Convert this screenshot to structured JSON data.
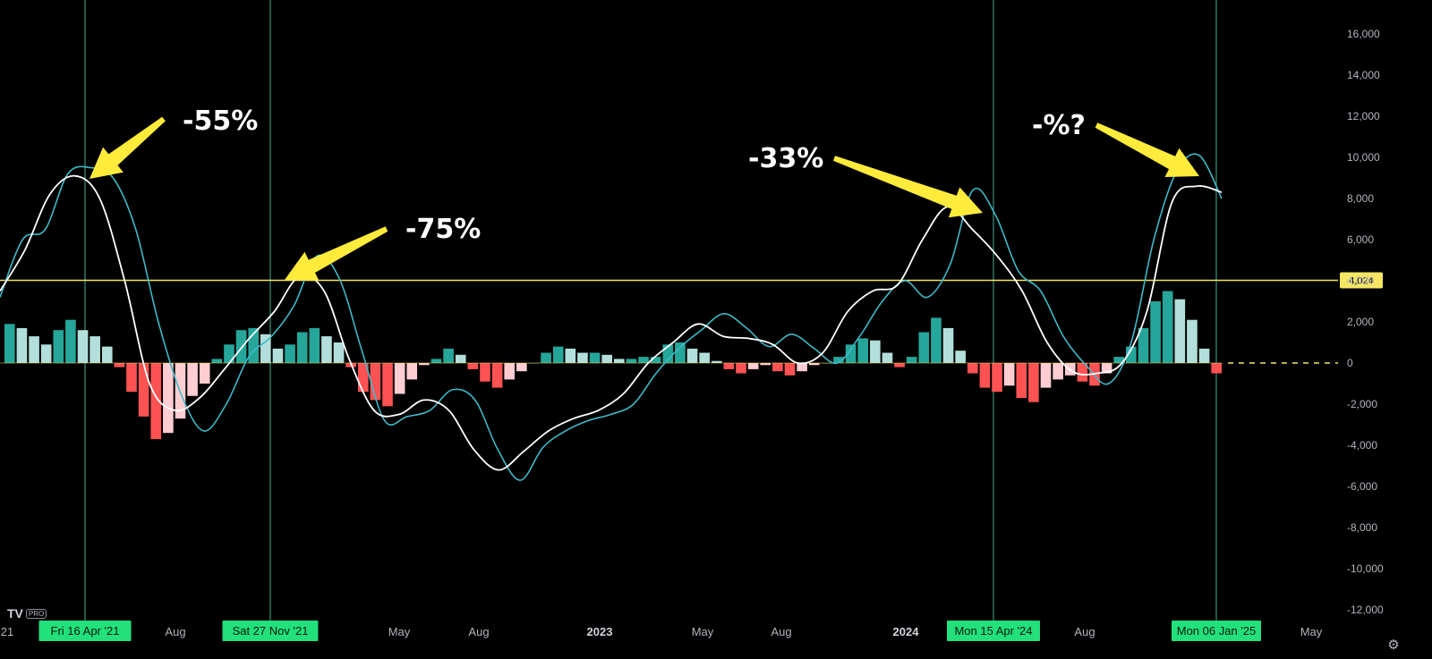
{
  "chart_data": {
    "type": "line",
    "y_axis": {
      "ticks": [
        "16,000",
        "14,000",
        "12,000",
        "10,000",
        "8,000",
        "6,000",
        "4,000",
        "2,000",
        "0",
        "-2,000",
        "-4,000",
        "-6,000",
        "-8,000",
        "-10,000",
        "-12,000"
      ],
      "ylim": [
        -12800,
        17200
      ]
    },
    "x_axis": {
      "labels": [
        {
          "text": "21",
          "bold": false
        },
        {
          "text": "Aug",
          "bold": false
        },
        {
          "text": "May",
          "bold": false
        },
        {
          "text": "Aug",
          "bold": false
        },
        {
          "text": "2023",
          "bold": true
        },
        {
          "text": "May",
          "bold": false
        },
        {
          "text": "Aug",
          "bold": false
        },
        {
          "text": "2024",
          "bold": true
        },
        {
          "text": "Aug",
          "bold": false
        },
        {
          "text": "May",
          "bold": false
        }
      ]
    },
    "vertical_markers": [
      {
        "date": "Fri 16 Apr '21"
      },
      {
        "date": "Sat 27 Nov '21"
      },
      {
        "date": "Mon 15 Apr '24"
      },
      {
        "date": "Mon 06 Jan '25"
      }
    ],
    "horizontal_level": {
      "value": 4024,
      "label": "4,024"
    },
    "annotations": [
      {
        "text": "-55%"
      },
      {
        "text": "-75%"
      },
      {
        "text": "-33%"
      },
      {
        "text": "-%?"
      }
    ],
    "series": [
      {
        "color": "#3fb8c9",
        "style": "fast-line",
        "values": [
          3200,
          6000,
          6500,
          9200,
          9500,
          9000,
          6500,
          2000,
          -1500,
          -3300,
          -2000,
          300,
          1300,
          2800,
          5200,
          4100,
          600,
          -2800,
          -2600,
          -2300,
          -1300,
          -1800,
          -4200,
          -5700,
          -4100,
          -3300,
          -2800,
          -2500,
          -2000,
          -500,
          700,
          1600,
          2400,
          1700,
          800,
          1400,
          700,
          0,
          1300,
          3000,
          4000,
          3200,
          4800,
          8400,
          7200,
          4500,
          3500,
          1300,
          -100,
          -1000,
          1000,
          6000,
          9300,
          10100,
          8000
        ]
      },
      {
        "color": "#ffffff",
        "style": "slow-line",
        "values": [
          3500,
          5500,
          8200,
          9100,
          8000,
          4000,
          -1000,
          -2300,
          -1700,
          -300,
          1200,
          2500,
          4200,
          3500,
          200,
          -2300,
          -2500,
          -1800,
          -2300,
          -4200,
          -5200,
          -4300,
          -3300,
          -2700,
          -2300,
          -1500,
          0,
          1000,
          1900,
          1300,
          1200,
          900,
          0,
          500,
          2500,
          3500,
          3800,
          6000,
          7600,
          6500,
          5200,
          3500,
          1000,
          -400,
          -500,
          0,
          2500,
          7800,
          8600,
          8300
        ]
      }
    ],
    "histogram": {
      "colors": {
        "pos_strong": "#26a69a",
        "pos_weak": "#b2dfdb",
        "neg_strong": "#ff5252",
        "neg_weak": "#ffcdd2"
      },
      "values": [
        1900,
        1700,
        1300,
        900,
        1600,
        2100,
        1600,
        1300,
        800,
        -200,
        -1400,
        -2600,
        -3700,
        -3400,
        -2700,
        -1600,
        -1000,
        200,
        900,
        1600,
        1700,
        1400,
        700,
        900,
        1500,
        1700,
        1300,
        1000,
        -200,
        -1400,
        -1800,
        -2100,
        -1500,
        -800,
        -100,
        200,
        700,
        400,
        -300,
        -900,
        -1200,
        -800,
        -400,
        0,
        500,
        800,
        700,
        500,
        500,
        400,
        200,
        200,
        300,
        300,
        900,
        1000,
        700,
        500,
        100,
        -300,
        -500,
        -300,
        -100,
        -400,
        -600,
        -400,
        -100,
        0,
        300,
        900,
        1200,
        1100,
        500,
        -200,
        300,
        1500,
        2200,
        1700,
        600,
        -500,
        -1200,
        -1400,
        -1100,
        -1700,
        -1900,
        -1200,
        -800,
        -600,
        -900,
        -1100,
        -500,
        300,
        800,
        1700,
        3000,
        3500,
        3100,
        2100,
        700,
        -500
      ]
    }
  }
}
